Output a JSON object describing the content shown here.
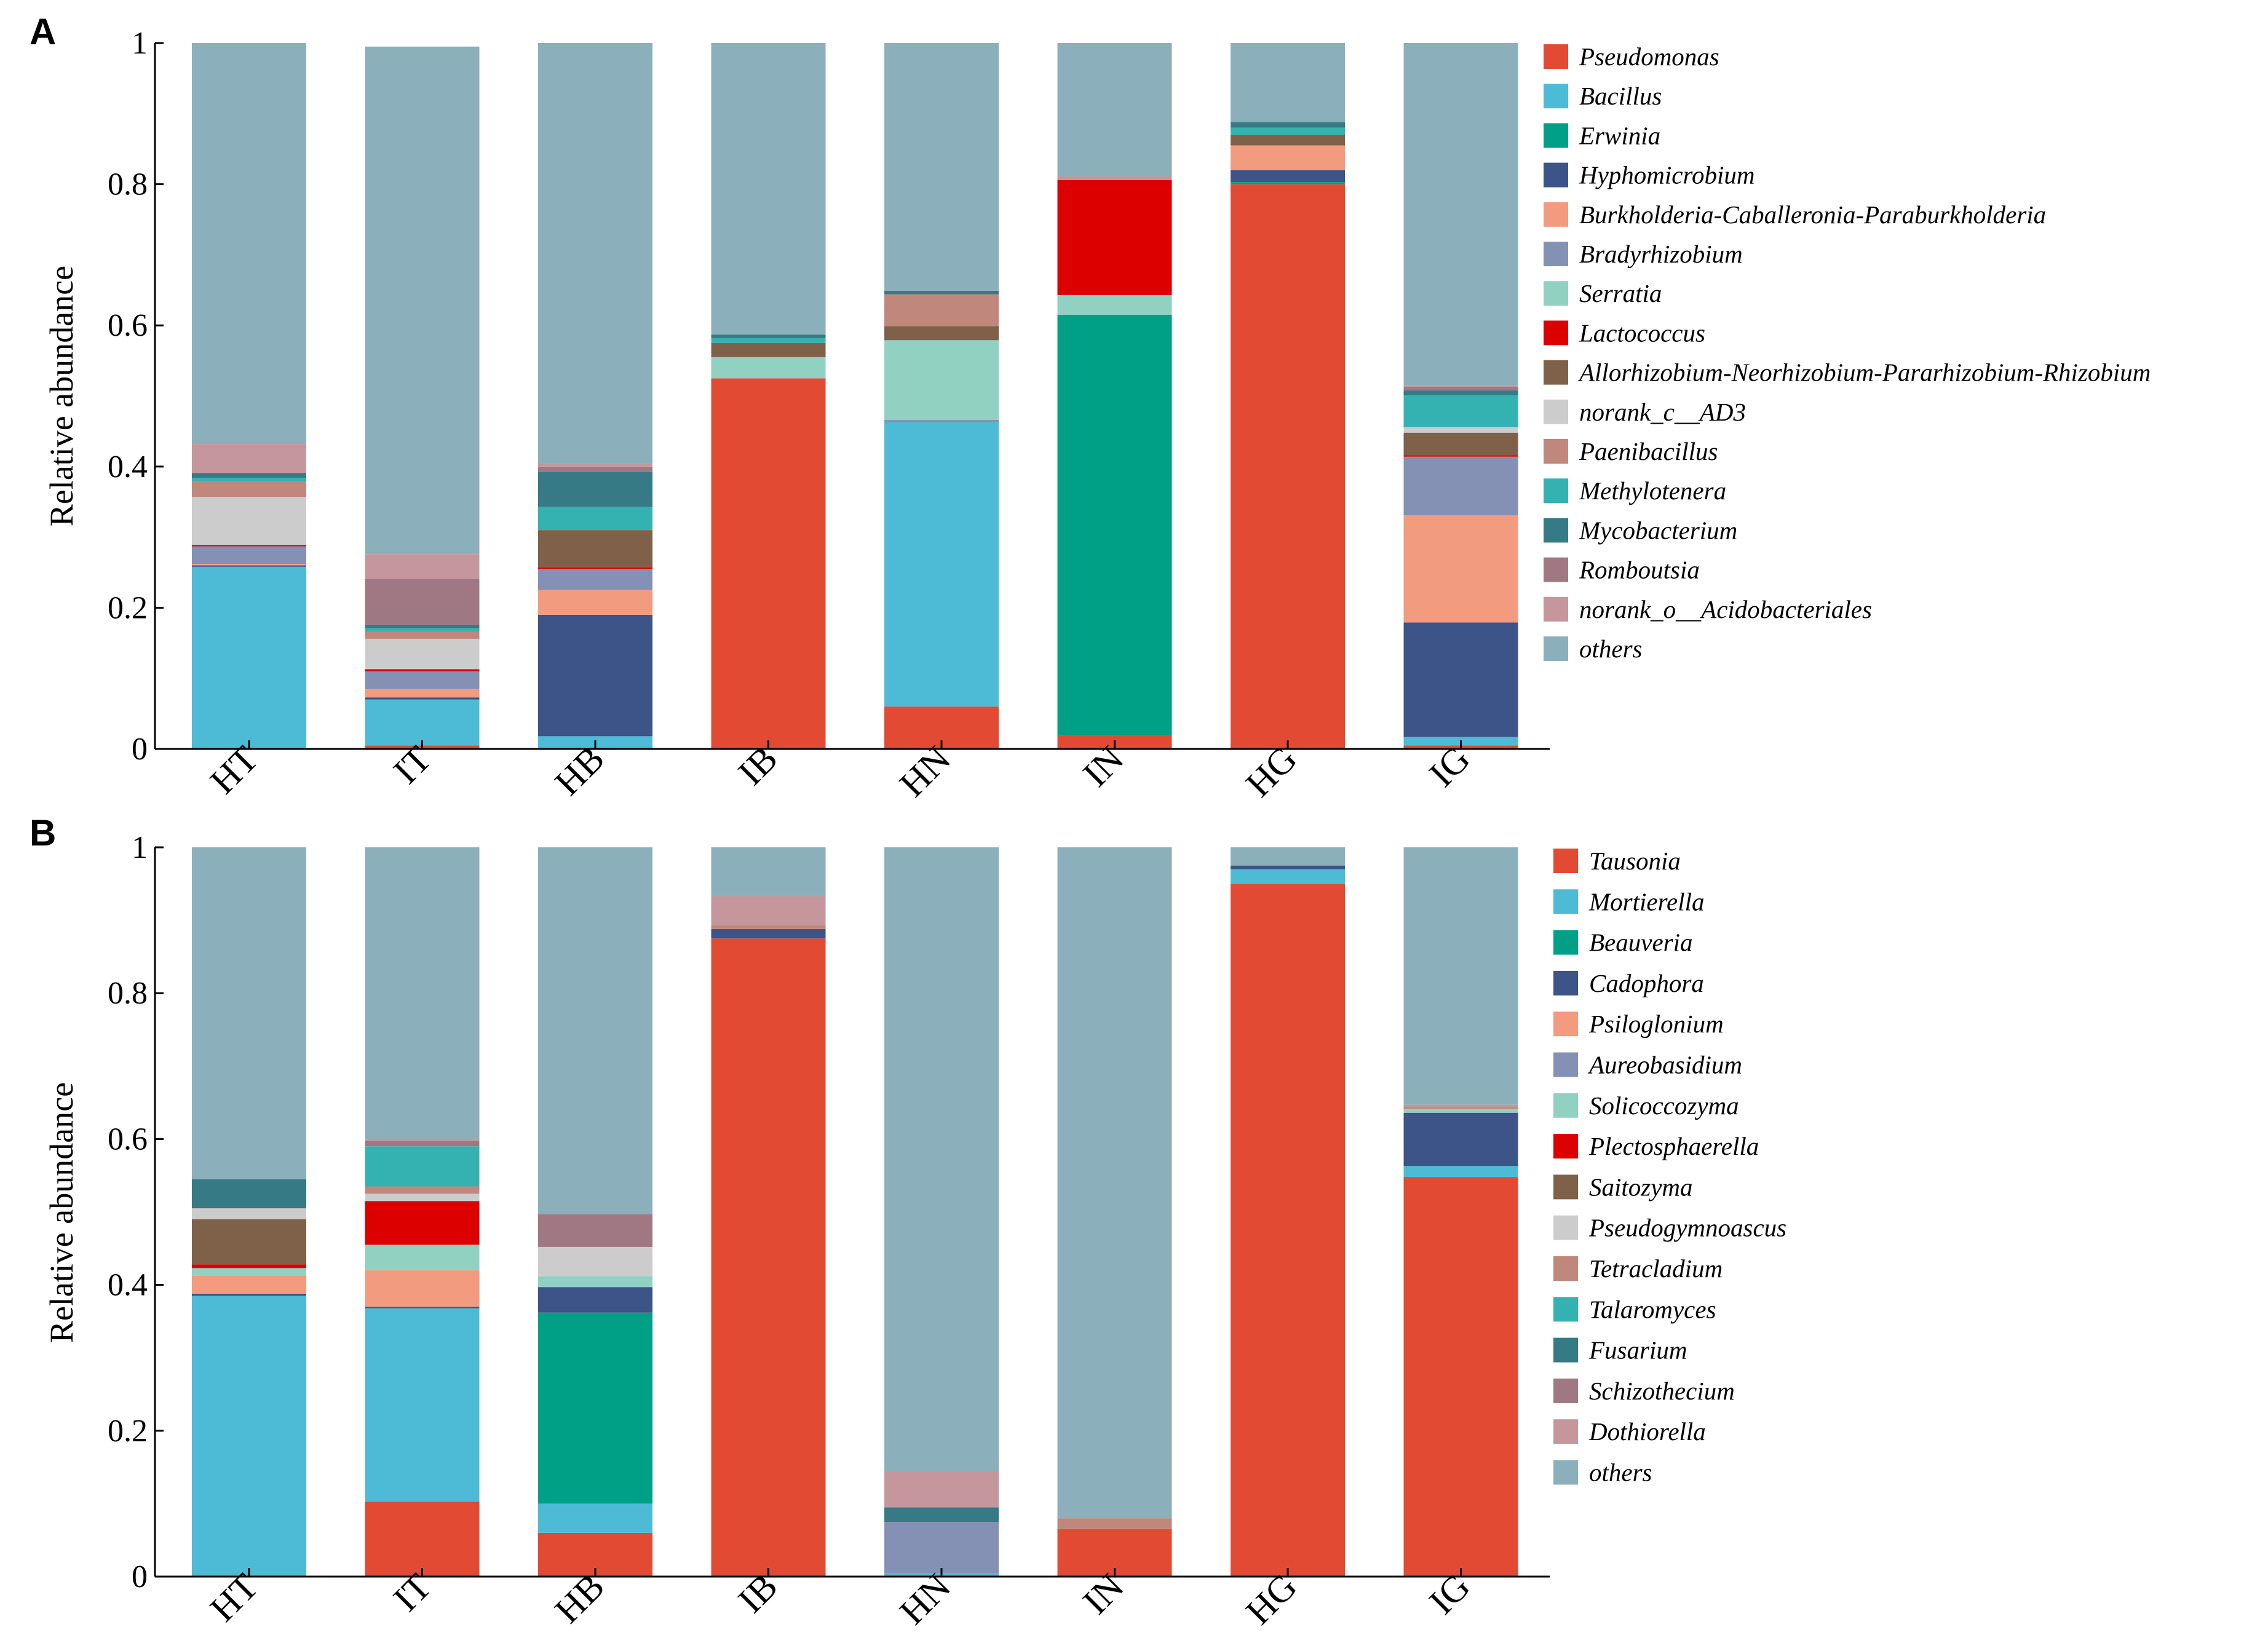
{
  "figure": {
    "panels": [
      "A",
      "B"
    ]
  },
  "chart_data": [
    {
      "panel": "A",
      "type": "bar",
      "stacked": true,
      "title": "",
      "xlabel": "",
      "ylabel": "Relative abundance",
      "ylim": [
        0,
        1
      ],
      "yticks": [
        "0",
        "0.2",
        "0.4",
        "0.6",
        "0.8",
        "1"
      ],
      "categories": [
        "HT",
        "IT",
        "HB",
        "IB",
        "HN",
        "IN",
        "HG",
        "IG"
      ],
      "legend_position": "right",
      "series": [
        {
          "name": "Pseudomonas",
          "color": "#E34A33",
          "values": [
            0.0,
            0.005,
            0.0,
            0.525,
            0.06,
            0.02,
            0.8,
            0.005
          ]
        },
        {
          "name": "Bacillus",
          "color": "#4DBBD5",
          "values": [
            0.258,
            0.065,
            0.018,
            0.0,
            0.403,
            0.0,
            0.0,
            0.012
          ]
        },
        {
          "name": "Erwinia",
          "color": "#00A087",
          "values": [
            0.0,
            0.0,
            0.0,
            0.0,
            0.0,
            0.595,
            0.003,
            0.0
          ]
        },
        {
          "name": "Hyphomicrobium",
          "color": "#3C5488",
          "values": [
            0.002,
            0.003,
            0.172,
            0.0,
            0.0,
            0.0,
            0.017,
            0.162
          ]
        },
        {
          "name": "Burkholderia-Caballeronia-Paraburkholderia",
          "color": "#F39B7F",
          "values": [
            0.002,
            0.012,
            0.035,
            0.0,
            0.0,
            0.0,
            0.035,
            0.152
          ]
        },
        {
          "name": "Bradyrhizobium",
          "color": "#8491B4",
          "values": [
            0.025,
            0.025,
            0.03,
            0.0,
            0.003,
            0.0,
            0.0,
            0.083
          ]
        },
        {
          "name": "Serratia",
          "color": "#91D1C2",
          "values": [
            0.0,
            0.0,
            0.0,
            0.03,
            0.113,
            0.028,
            0.0,
            0.0
          ]
        },
        {
          "name": "Lactococcus",
          "color": "#DC0000",
          "values": [
            0.002,
            0.003,
            0.002,
            0.0,
            0.0,
            0.163,
            0.0,
            0.002
          ]
        },
        {
          "name": "Allorhizobium-Neorhizobium-Pararhizobium-Rhizobium",
          "color": "#7E6148",
          "values": [
            0.0,
            0.0,
            0.053,
            0.02,
            0.02,
            0.0,
            0.015,
            0.032
          ]
        },
        {
          "name": "norank_c__AD3",
          "color": "#CCCCCC",
          "values": [
            0.068,
            0.043,
            0.0,
            0.0,
            0.0,
            0.0,
            0.0,
            0.008
          ]
        },
        {
          "name": "Paenibacillus",
          "color": "#C0877C",
          "values": [
            0.022,
            0.01,
            0.0,
            0.0,
            0.045,
            0.0,
            0.0,
            0.0
          ]
        },
        {
          "name": "Methylotenera",
          "color": "#34B2B2",
          "values": [
            0.005,
            0.005,
            0.033,
            0.007,
            0.0,
            0.0,
            0.01,
            0.045
          ]
        },
        {
          "name": "Mycobacterium",
          "color": "#357A84",
          "values": [
            0.007,
            0.005,
            0.05,
            0.005,
            0.005,
            0.0,
            0.008,
            0.007
          ]
        },
        {
          "name": "Romboutsia",
          "color": "#A07884",
          "values": [
            0.0,
            0.065,
            0.007,
            0.0,
            0.0,
            0.0,
            0.0,
            0.005
          ]
        },
        {
          "name": "norank_o__Acidobacteriales",
          "color": "#C5979D",
          "values": [
            0.041,
            0.035,
            0.005,
            0.0,
            0.0,
            0.005,
            0.0,
            0.002
          ]
        },
        {
          "name": "others",
          "color": "#8CB0BB",
          "values": [
            0.568,
            0.719,
            0.595,
            0.413,
            0.351,
            0.189,
            0.112,
            0.485
          ]
        }
      ]
    },
    {
      "panel": "B",
      "type": "bar",
      "stacked": true,
      "title": "",
      "xlabel": "",
      "ylabel": "Relative abundance",
      "ylim": [
        0,
        1
      ],
      "yticks": [
        "0",
        "0.2",
        "0.4",
        "0.6",
        "0.8",
        "1"
      ],
      "categories": [
        "HT",
        "IT",
        "HB",
        "IB",
        "HN",
        "IN",
        "HG",
        "IG"
      ],
      "legend_position": "right",
      "series": [
        {
          "name": "Tausonia",
          "color": "#E34A33",
          "values": [
            0.0,
            0.103,
            0.06,
            0.875,
            0.0,
            0.065,
            0.95,
            0.548
          ]
        },
        {
          "name": "Mortierella",
          "color": "#4DBBD5",
          "values": [
            0.385,
            0.265,
            0.04,
            0.0,
            0.005,
            0.0,
            0.02,
            0.015
          ]
        },
        {
          "name": "Beauveria",
          "color": "#00A087",
          "values": [
            0.0,
            0.0,
            0.262,
            0.0,
            0.0,
            0.0,
            0.0,
            0.0
          ]
        },
        {
          "name": "Cadophora",
          "color": "#3C5488",
          "values": [
            0.003,
            0.002,
            0.035,
            0.013,
            0.0,
            0.0,
            0.005,
            0.073
          ]
        },
        {
          "name": "Psiloglonium",
          "color": "#F39B7F",
          "values": [
            0.025,
            0.05,
            0.0,
            0.0,
            0.0,
            0.0,
            0.0,
            0.0
          ]
        },
        {
          "name": "Aureobasidium",
          "color": "#8491B4",
          "values": [
            0.0,
            0.0,
            0.0,
            0.0,
            0.07,
            0.0,
            0.0,
            0.0
          ]
        },
        {
          "name": "Solicoccozyma",
          "color": "#91D1C2",
          "values": [
            0.01,
            0.035,
            0.015,
            0.0,
            0.0,
            0.0,
            0.0,
            0.005
          ]
        },
        {
          "name": "Plectosphaerella",
          "color": "#DC0000",
          "values": [
            0.005,
            0.06,
            0.0,
            0.0,
            0.0,
            0.0,
            0.0,
            0.0
          ]
        },
        {
          "name": "Saitozyma",
          "color": "#7E6148",
          "values": [
            0.062,
            0.0,
            0.0,
            0.0,
            0.0,
            0.0,
            0.0,
            0.0
          ]
        },
        {
          "name": "Pseudogymnoascus",
          "color": "#CCCCCC",
          "values": [
            0.015,
            0.01,
            0.04,
            0.0,
            0.0,
            0.0,
            0.0,
            0.0
          ]
        },
        {
          "name": "Tetracladium",
          "color": "#C0877C",
          "values": [
            0.0,
            0.01,
            0.0,
            0.005,
            0.0,
            0.015,
            0.0,
            0.003
          ]
        },
        {
          "name": "Talaromyces",
          "color": "#34B2B2",
          "values": [
            0.0,
            0.055,
            0.0,
            0.0,
            0.0,
            0.0,
            0.0,
            0.0
          ]
        },
        {
          "name": "Fusarium",
          "color": "#357A84",
          "values": [
            0.04,
            0.0,
            0.0,
            0.0,
            0.02,
            0.0,
            0.0,
            0.0
          ]
        },
        {
          "name": "Schizothecium",
          "color": "#A07884",
          "values": [
            0.0,
            0.008,
            0.045,
            0.0,
            0.0,
            0.0,
            0.0,
            0.0
          ]
        },
        {
          "name": "Dothiorella",
          "color": "#C5979D",
          "values": [
            0.0,
            0.002,
            0.0,
            0.04,
            0.05,
            0.0,
            0.0,
            0.003
          ]
        },
        {
          "name": "others",
          "color": "#8CB0BB",
          "values": [
            0.455,
            0.4,
            0.503,
            0.067,
            0.855,
            0.92,
            0.025,
            0.353
          ]
        }
      ]
    }
  ]
}
